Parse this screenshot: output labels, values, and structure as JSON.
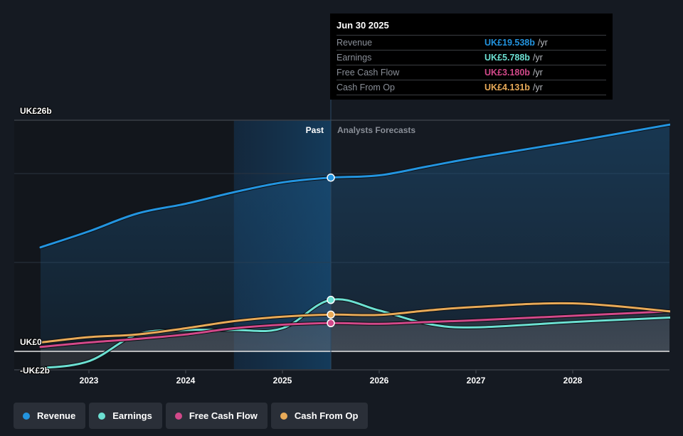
{
  "tooltip": {
    "date": "Jun 30 2025",
    "rows": [
      {
        "name": "Revenue",
        "value": "UK£19.538b",
        "unit": "/yr",
        "color": "#2394df"
      },
      {
        "name": "Earnings",
        "value": "UK£5.788b",
        "unit": "/yr",
        "color": "#6ce0d2"
      },
      {
        "name": "Free Cash Flow",
        "value": "UK£3.180b",
        "unit": "/yr",
        "color": "#d2498a"
      },
      {
        "name": "Cash From Op",
        "value": "UK£4.131b",
        "unit": "/yr",
        "color": "#e8aa58"
      }
    ]
  },
  "legend": [
    {
      "label": "Revenue",
      "color": "#2394df",
      "icon": "dot-icon"
    },
    {
      "label": "Earnings",
      "color": "#6ce0d2",
      "icon": "dot-icon"
    },
    {
      "label": "Free Cash Flow",
      "color": "#d2498a",
      "icon": "dot-icon"
    },
    {
      "label": "Cash From Op",
      "color": "#e8aa58",
      "icon": "dot-icon"
    }
  ],
  "chart_data": {
    "type": "line",
    "title": "",
    "xlabel": "",
    "ylabel": "",
    "y_unit": "UK£ billions",
    "ylim": [
      -2,
      26
    ],
    "xlim": [
      2022.5,
      2029.0
    ],
    "y_tick_labels": [
      {
        "value": 26,
        "label": "UK£26b"
      },
      {
        "value": 0,
        "label": "UK£0"
      },
      {
        "value": -2,
        "label": "-UK£2b"
      }
    ],
    "y_gridlines": [
      26,
      20,
      10
    ],
    "x_ticks": [
      {
        "value": 2023,
        "label": "2023"
      },
      {
        "value": 2024,
        "label": "2024"
      },
      {
        "value": 2025,
        "label": "2025"
      },
      {
        "value": 2026,
        "label": "2026"
      },
      {
        "value": 2027,
        "label": "2027"
      },
      {
        "value": 2028,
        "label": "2028"
      }
    ],
    "divider_x": 2025.5,
    "past_shade_start": 2024.5,
    "past_label": "Past",
    "forecast_label": "Analysts Forecasts",
    "highlight_x": 2025.5,
    "x": [
      2022.5,
      2023.0,
      2023.5,
      2024.0,
      2024.5,
      2025.0,
      2025.5,
      2026.0,
      2026.5,
      2027.0,
      2028.0,
      2029.0
    ],
    "series": [
      {
        "name": "Revenue",
        "color": "#2394df",
        "fill": true,
        "values": [
          11.7,
          13.5,
          15.5,
          16.6,
          17.9,
          19.0,
          19.538,
          19.8,
          20.8,
          21.8,
          23.6,
          25.5
        ]
      },
      {
        "name": "Earnings",
        "color": "#6ce0d2",
        "fill": true,
        "values": [
          -1.9,
          -1.1,
          1.9,
          2.4,
          2.4,
          2.6,
          5.788,
          4.6,
          3.1,
          2.7,
          3.3,
          3.8
        ]
      },
      {
        "name": "Free Cash Flow",
        "color": "#d2498a",
        "fill": true,
        "values": [
          0.5,
          1.0,
          1.4,
          1.9,
          2.6,
          3.0,
          3.18,
          3.1,
          3.3,
          3.5,
          4.0,
          4.5
        ]
      },
      {
        "name": "Cash From Op",
        "color": "#e8aa58",
        "fill": false,
        "values": [
          1.0,
          1.6,
          1.9,
          2.6,
          3.4,
          3.9,
          4.131,
          4.1,
          4.6,
          5.0,
          5.4,
          4.5
        ]
      }
    ]
  }
}
